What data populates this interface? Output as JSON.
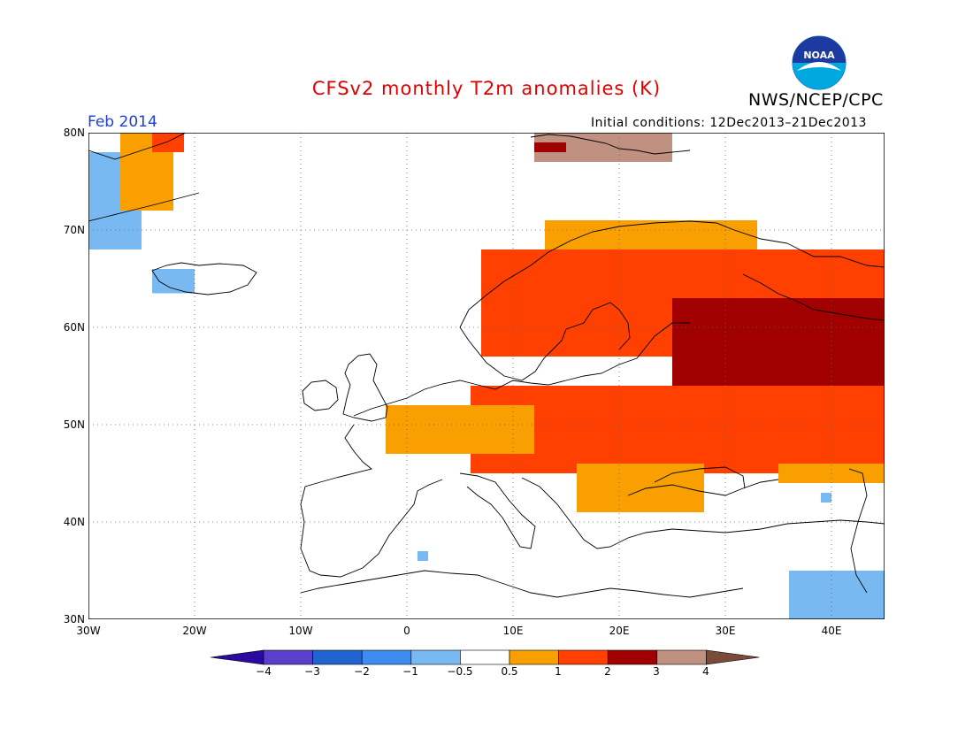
{
  "title": "CFSv2 monthly T2m anomalies (K)",
  "agency": "NWS/NCEP/CPC",
  "logo_text": "NOAA",
  "period": "Feb 2014",
  "initial_conditions": "Initial conditions: 12Dec2013–21Dec2013",
  "map": {
    "lon_range": [
      -30,
      45
    ],
    "lat_range": [
      30,
      80
    ],
    "grid": "dotted",
    "lat_labels": [
      "30N",
      "40N",
      "50N",
      "60N",
      "70N",
      "80N"
    ],
    "lon_labels": [
      "30W",
      "20W",
      "10W",
      "0",
      "10E",
      "20E",
      "30E",
      "40E"
    ],
    "anomaly_regions": [
      {
        "region": "Western Greenland",
        "lon": [
          -30,
          -25
        ],
        "lat": [
          68,
          78
        ],
        "level": "-1 to -0.5"
      },
      {
        "region": "Southern Greenland coast",
        "lon": [
          -30,
          -26
        ],
        "lat": [
          68,
          71
        ],
        "level": "-1 to -0.5"
      },
      {
        "region": "Eastern Greenland",
        "lon": [
          -27,
          -22
        ],
        "lat": [
          72,
          80
        ],
        "level": "0.5 to 1"
      },
      {
        "region": "NE Greenland",
        "lon": [
          -24,
          -21
        ],
        "lat": [
          78,
          80
        ],
        "level": "1 to 2"
      },
      {
        "region": "Iceland",
        "lon": [
          -24,
          -20
        ],
        "lat": [
          63.5,
          66
        ],
        "level": "-1 to -0.5"
      },
      {
        "region": "Svalbard",
        "lon": [
          12,
          25
        ],
        "lat": [
          77,
          80
        ],
        "level": "3 to 4"
      },
      {
        "region": "Svalbard west",
        "lon": [
          12,
          15
        ],
        "lat": [
          78,
          79
        ],
        "level": "2 to 3"
      },
      {
        "region": "Northern Scandinavia coast",
        "lon": [
          13,
          33
        ],
        "lat": [
          68,
          71
        ],
        "level": "0.5 to 1"
      },
      {
        "region": "Scandinavia",
        "lon": [
          7,
          25
        ],
        "lat": [
          57,
          68
        ],
        "level": "1 to 2"
      },
      {
        "region": "Western Russia north",
        "lon": [
          22,
          45
        ],
        "lat": [
          61,
          68
        ],
        "level": "1 to 2"
      },
      {
        "region": "Western Russia",
        "lon": [
          25,
          45
        ],
        "lat": [
          51,
          63
        ],
        "level": "2 to 3"
      },
      {
        "region": "Eastern Europe",
        "lon": [
          6,
          45
        ],
        "lat": [
          45,
          54
        ],
        "level": "1 to 2"
      },
      {
        "region": "Western Europe",
        "lon": [
          -2,
          12
        ],
        "lat": [
          47,
          52
        ],
        "level": "0.5 to 1"
      },
      {
        "region": "Balkans",
        "lon": [
          16,
          28
        ],
        "lat": [
          41,
          46
        ],
        "level": "0.5 to 1"
      },
      {
        "region": "Northern Turkey / Black Sea",
        "lon": [
          35,
          45
        ],
        "lat": [
          44,
          46
        ],
        "level": "0.5 to 1"
      },
      {
        "region": "Middle East",
        "lon": [
          36,
          45
        ],
        "lat": [
          30,
          35
        ],
        "level": "-1 to -0.5"
      },
      {
        "region": "Caucasus",
        "lon": [
          39,
          40
        ],
        "lat": [
          42,
          43
        ],
        "level": "-1 to -0.5"
      },
      {
        "region": "Algeria coast",
        "lon": [
          1,
          2
        ],
        "lat": [
          36,
          37
        ],
        "level": "-1 to -0.5"
      }
    ]
  },
  "colorbar": {
    "labels": [
      "−4",
      "−3",
      "−2",
      "−1",
      "−0.5",
      "0.5",
      "1",
      "2",
      "3",
      "4"
    ],
    "colors": [
      "#2a0aa0",
      "#5a3ecc",
      "#1f64d0",
      "#3e8cf0",
      "#78b9f2",
      "#ffffff",
      "#f9a000",
      "#ff4000",
      "#a00000",
      "#c09080",
      "#7a4a3a"
    ]
  }
}
